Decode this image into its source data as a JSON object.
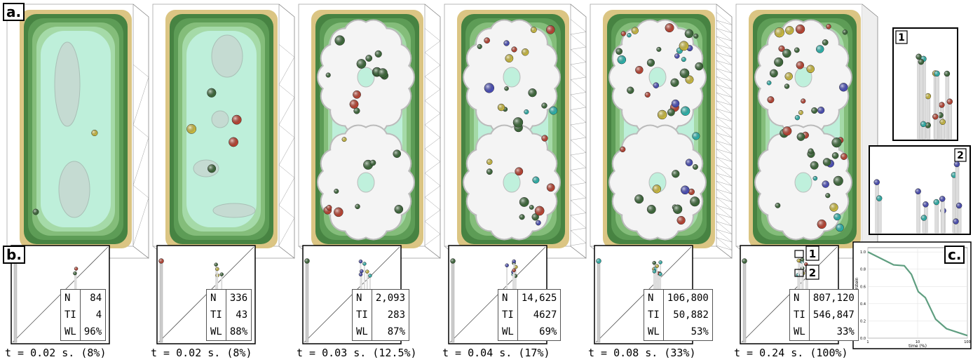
{
  "panel_labels": {
    "a": "a.",
    "b": "b.",
    "c": "c."
  },
  "panels": [
    {
      "caption": "t = 0.02 s. (8%)",
      "table": [
        [
          "N",
          "84"
        ],
        [
          "TI",
          "4"
        ],
        [
          "WL",
          "96%"
        ]
      ]
    },
    {
      "caption": "t = 0.02 s. (8%)",
      "table": [
        [
          "N",
          "336"
        ],
        [
          "TI",
          "43"
        ],
        [
          "WL",
          "88%"
        ]
      ]
    },
    {
      "caption": "t = 0.03 s. (12.5%)",
      "table": [
        [
          "N",
          "2,093"
        ],
        [
          "TI",
          "283"
        ],
        [
          "WL",
          "87%"
        ]
      ]
    },
    {
      "caption": "t = 0.04 s. (17%)",
      "table": [
        [
          "N",
          "14,625"
        ],
        [
          "TI",
          "4627"
        ],
        [
          "WL",
          "69%"
        ]
      ]
    },
    {
      "caption": "t = 0.08 s. (33%)",
      "table": [
        [
          "N",
          "106,800"
        ],
        [
          "TI",
          "50,882"
        ],
        [
          "WL",
          "53%"
        ]
      ]
    },
    {
      "caption": "t = 0.24 s. (100%)",
      "table": [
        [
          "N",
          "807,120"
        ],
        [
          "TI",
          "546,847"
        ],
        [
          "WL",
          "33%"
        ]
      ]
    }
  ],
  "insets": [
    {
      "label": "1"
    },
    {
      "label": "2"
    }
  ],
  "chart_data": {
    "type": "line",
    "x_label": "time (%)",
    "y_label": "L₂-Wasserstein",
    "x": [
      1,
      3.3,
      5.4,
      7.5,
      10.3,
      14.3,
      23,
      38,
      100
    ],
    "series": [
      {
        "color": "#5f9e80",
        "values": [
          1.0,
          0.85,
          0.84,
          0.74,
          0.54,
          0.47,
          0.22,
          0.11,
          0.03
        ]
      }
    ],
    "xlim": [
      1,
      100
    ],
    "ylim": [
      0,
      1.05
    ],
    "xticks": [
      1,
      10,
      100
    ],
    "yticks": [
      {
        "value": 0,
        "label": "0.0"
      },
      0.2,
      0.4,
      0.6,
      0.8,
      {
        "value": 1,
        "label": "1.0"
      }
    ],
    "xscale": "log",
    "grid": true
  }
}
